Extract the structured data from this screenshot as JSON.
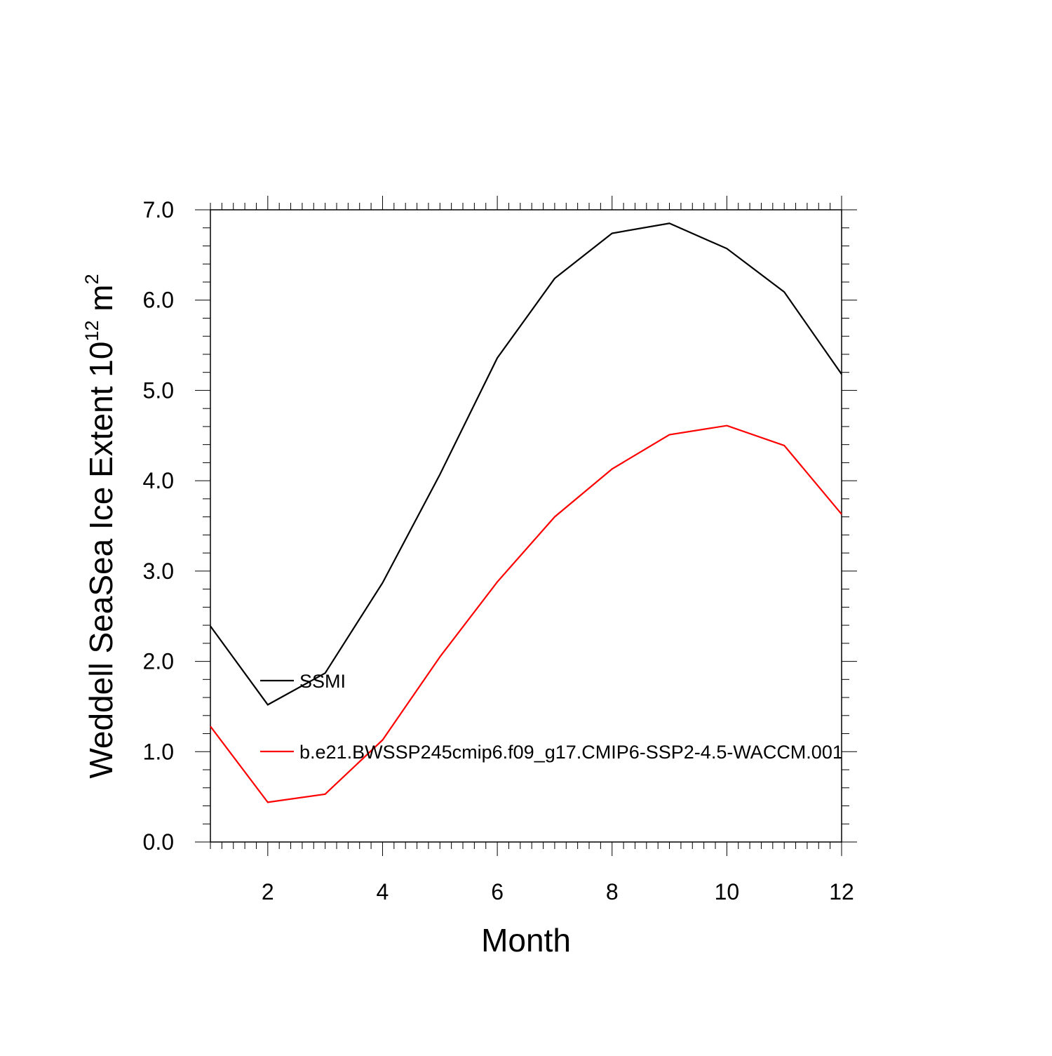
{
  "chart_data": {
    "type": "line",
    "xlabel": "Month",
    "ylabel_text": "Weddell SeaSea Ice Extent 10",
    "ylabel_exp": "12",
    "ylabel_unit": " m",
    "ylabel_unit_exp": "2",
    "xlim": [
      1,
      12
    ],
    "ylim": [
      0.0,
      7.0
    ],
    "x_ticks": [
      2,
      4,
      6,
      8,
      10,
      12
    ],
    "x_tick_labels": [
      "2",
      "4",
      "6",
      "8",
      "10",
      "12"
    ],
    "y_ticks": [
      0.0,
      1.0,
      2.0,
      3.0,
      4.0,
      5.0,
      6.0,
      7.0
    ],
    "y_tick_labels": [
      "0.0",
      "1.0",
      "2.0",
      "3.0",
      "4.0",
      "5.0",
      "6.0",
      "7.0"
    ],
    "grid": false,
    "legend_position": "left-center inside plot",
    "x": [
      1,
      2,
      3,
      4,
      5,
      6,
      7,
      8,
      9,
      10,
      11,
      12
    ],
    "series": [
      {
        "name": "SSMI",
        "color": "#000000",
        "values": [
          2.39,
          1.52,
          1.87,
          2.87,
          4.07,
          5.36,
          6.24,
          6.74,
          6.85,
          6.57,
          6.09,
          5.18
        ]
      },
      {
        "name": "b.e21.BWSSP245cmip6.f09_g17.CMIP6-SSP2-4.5-WACCM.001",
        "color": "#ff0000",
        "values": [
          1.28,
          0.44,
          0.53,
          1.13,
          2.05,
          2.88,
          3.6,
          4.13,
          4.51,
          4.61,
          4.39,
          3.63
        ]
      }
    ]
  }
}
